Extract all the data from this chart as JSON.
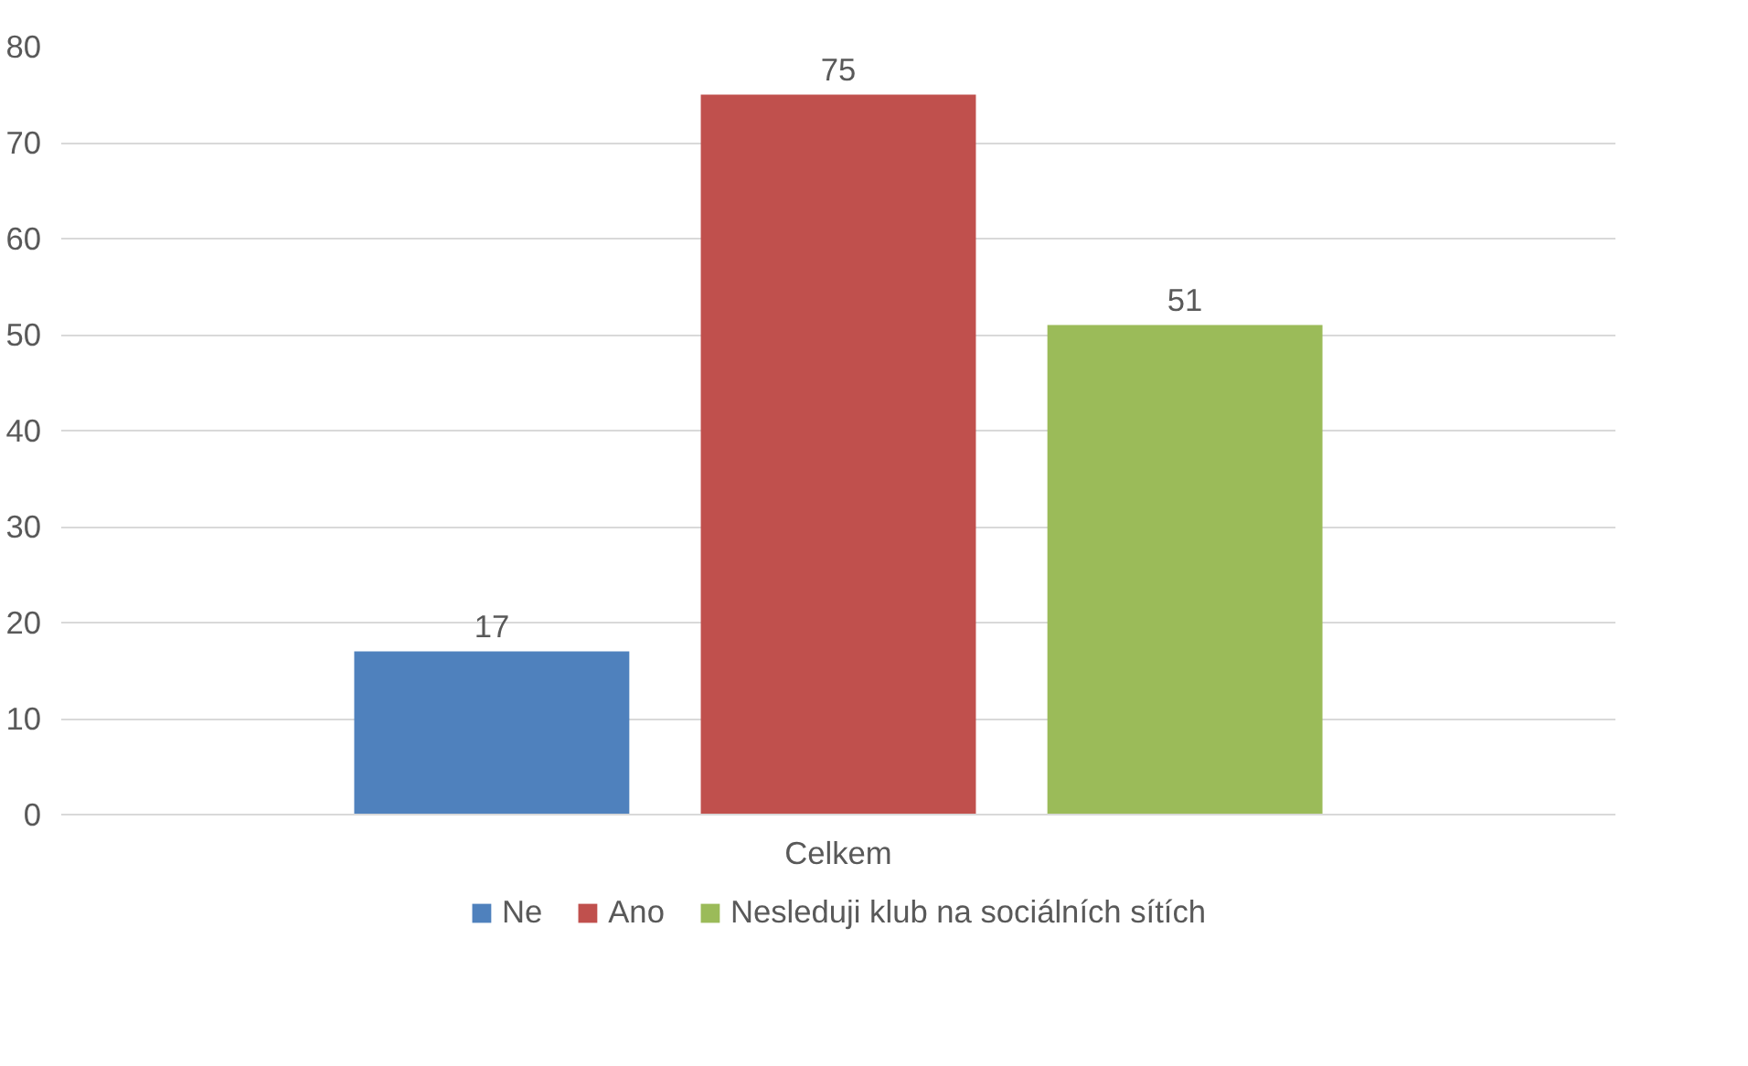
{
  "chart_data": {
    "type": "bar",
    "categories": [
      "Celkem"
    ],
    "series": [
      {
        "name": "Ne",
        "color": "#4f81bd",
        "values": [
          17
        ]
      },
      {
        "name": "Ano",
        "color": "#c0504d",
        "values": [
          75
        ]
      },
      {
        "name": "Nesleduji klub na sociálních sítích",
        "color": "#9bbb59",
        "values": [
          51
        ]
      }
    ],
    "ylim": [
      0,
      80
    ],
    "yticks": [
      0,
      10,
      20,
      30,
      40,
      50,
      60,
      70,
      80
    ],
    "grid": "y",
    "legend": "bottom",
    "data_labels": true
  }
}
